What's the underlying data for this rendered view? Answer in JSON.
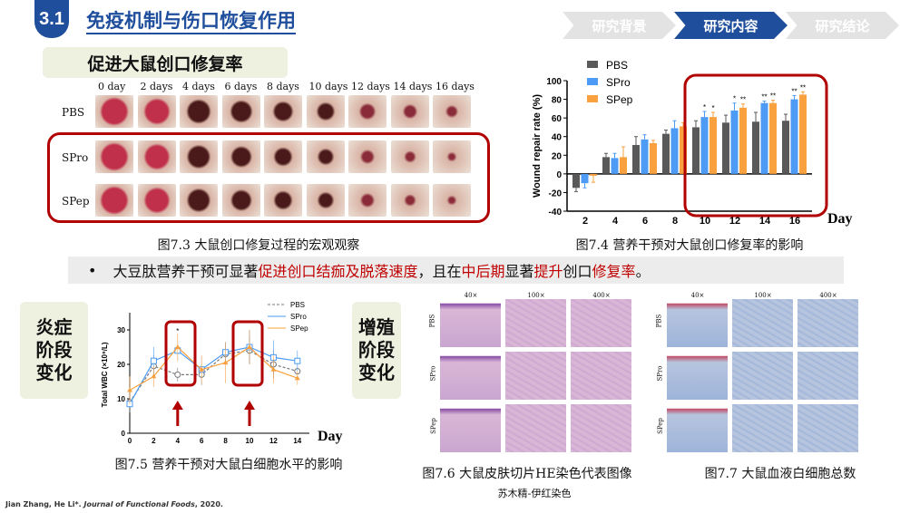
{
  "header": {
    "section": "3.1",
    "title": "免疫机制与伤口恢复作用",
    "nav": [
      {
        "label": "研究背景",
        "active": false
      },
      {
        "label": "研究内容",
        "active": true
      },
      {
        "label": "研究结论",
        "active": false
      }
    ]
  },
  "wound_section": {
    "subtitle": "促进大鼠创口修复率",
    "columns": [
      "0 day",
      "2 days",
      "4 days",
      "6 days",
      "8 days",
      "10 days",
      "12 days",
      "14 days",
      "16 days"
    ],
    "rows": [
      "PBS",
      "SPro",
      "SPep"
    ],
    "caption": "图7.3 大鼠创口修复过程的宏观观察"
  },
  "bullet": {
    "parts": [
      {
        "text": "大豆肽营养干预可显著",
        "red": false
      },
      {
        "text": "促进创口结痂及脱落速度",
        "red": true
      },
      {
        "text": "，且在",
        "red": false
      },
      {
        "text": "中后期",
        "red": true
      },
      {
        "text": "显著",
        "red": false
      },
      {
        "text": "提升",
        "red": true
      },
      {
        "text": "创口",
        "red": false
      },
      {
        "text": "修复率",
        "red": true
      },
      {
        "text": "。",
        "red": false
      }
    ]
  },
  "stages": {
    "inflammation": "炎症阶段变化",
    "proliferation": "增殖阶段变化"
  },
  "histology": {
    "magnifications": [
      "40×",
      "100×",
      "400×"
    ],
    "rows": [
      "PBS",
      "SPro",
      "SPep"
    ],
    "caption_he": "图7.6 大鼠皮肤切片HE染色代表图像",
    "subcaption_he": "苏木精-伊红染色",
    "caption_wbc": "图7.7 大鼠血液白细胞总数"
  },
  "citation": {
    "authors": "Jian Zhang, He Li*. ",
    "journal": "Journal of Functional Foods",
    "year": ", 2020."
  },
  "colors": {
    "pbs_bar": "#595959",
    "spro": "#4d9bf5",
    "spep": "#f9a03f",
    "highlight": "#c00000",
    "brand": "#1f4e9c"
  },
  "chart_data": [
    {
      "type": "bar",
      "title": "",
      "caption": "图7.4 营养干预对大鼠创口修复率的影响",
      "xlabel": "Day",
      "ylabel": "Wound repair rate (%)",
      "ylim": [
        -40,
        100
      ],
      "yticks": [
        -40,
        -20,
        0,
        20,
        40,
        60,
        80,
        100
      ],
      "categories": [
        "2",
        "4",
        "6",
        "8",
        "10",
        "12",
        "14",
        "16"
      ],
      "legend": "top-left",
      "series": [
        {
          "name": "PBS",
          "values": [
            -15,
            18,
            31,
            43,
            50,
            55,
            56,
            57
          ],
          "errors": [
            4,
            4,
            9,
            4,
            7,
            8,
            10,
            7
          ],
          "sig": [
            "",
            "",
            "",
            "",
            "",
            "",
            "",
            ""
          ]
        },
        {
          "name": "SPro",
          "values": [
            -10,
            17,
            37,
            49,
            61,
            68,
            76,
            80
          ],
          "errors": [
            5,
            5,
            5,
            8,
            6,
            8,
            2,
            4
          ],
          "sig": [
            "",
            "",
            "",
            "",
            "*",
            "*",
            "**",
            "**"
          ]
        },
        {
          "name": "SPep",
          "values": [
            -2,
            18,
            33,
            51,
            61,
            71,
            76,
            85
          ],
          "errors": [
            7,
            11,
            3,
            4,
            5,
            4,
            3,
            3
          ],
          "sig": [
            "",
            "",
            "",
            "",
            "*",
            "**",
            "**",
            "**"
          ]
        }
      ]
    },
    {
      "type": "line",
      "caption": "图7.5 营养干预对大鼠白细胞水平的影响",
      "xlabel": "Day",
      "ylabel": "Total WBC (×10⁹/L)",
      "ylim": [
        0,
        35
      ],
      "yticks": [
        0,
        10,
        20,
        30
      ],
      "x": [
        0,
        2,
        4,
        6,
        8,
        10,
        12,
        14
      ],
      "legend": "top-right",
      "series": [
        {
          "name": "PBS",
          "values": [
            9,
            19.5,
            17,
            17,
            23,
            24,
            20,
            18
          ],
          "errors": [
            3,
            3,
            2,
            3,
            3,
            4,
            4,
            2
          ]
        },
        {
          "name": "SPro",
          "values": [
            8.5,
            21,
            24,
            18.5,
            23.5,
            25,
            22,
            21
          ],
          "errors": [
            1,
            4,
            3,
            4,
            3,
            5,
            5,
            3
          ]
        },
        {
          "name": "SPep",
          "values": [
            12.5,
            16.5,
            25,
            18.5,
            20.5,
            25,
            18.5,
            16
          ],
          "errors": [
            4,
            3,
            4,
            4,
            6,
            5,
            4,
            2
          ]
        }
      ],
      "annotations": [
        "*"
      ]
    }
  ]
}
